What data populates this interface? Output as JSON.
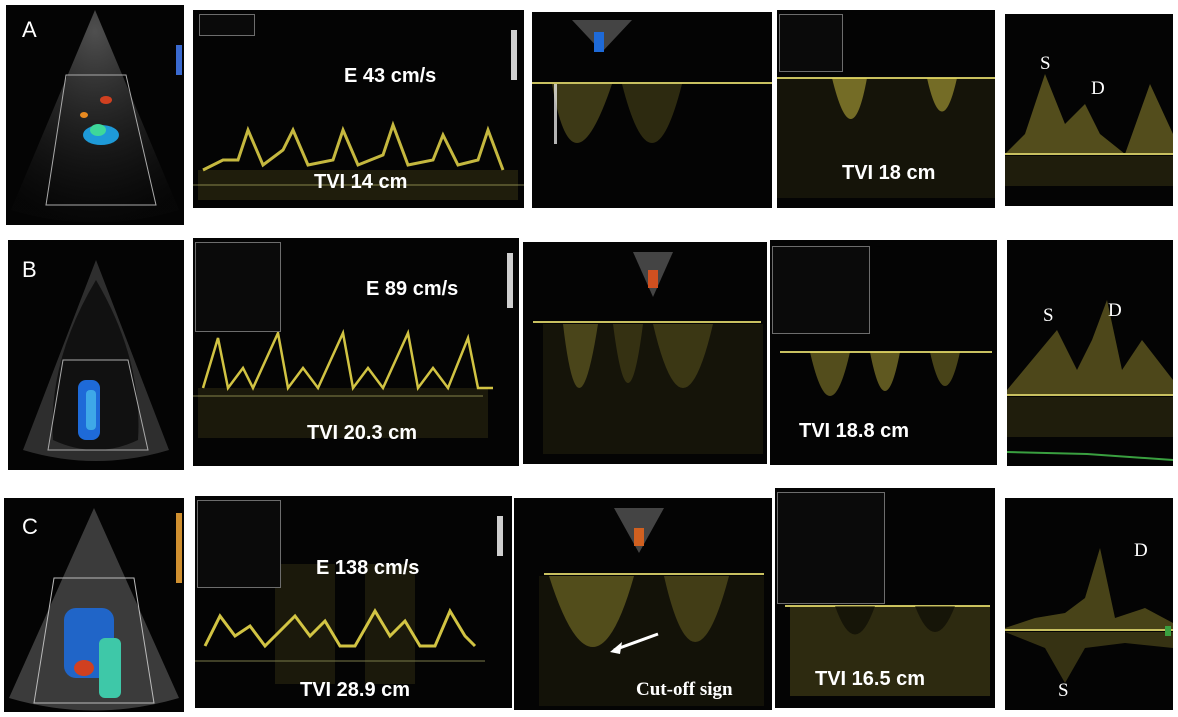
{
  "rows": [
    {
      "label": "A",
      "e_velocity": "E 43 cm/s",
      "tvi_lvot": "TVI 14 cm",
      "tvi_rvot": "TVI 18 cm",
      "vein_s": "S",
      "vein_d": "D"
    },
    {
      "label": "B",
      "e_velocity": "E 89 cm/s",
      "tvi_lvot": "TVI 20.3 cm",
      "tvi_rvot": "TVI 18.8 cm",
      "vein_s": "S",
      "vein_d": "D"
    },
    {
      "label": "C",
      "e_velocity": "E 138 cm/s",
      "tvi_lvot": "TVI 28.9 cm",
      "tvi_rvot": "TVI 16.5 cm",
      "vein_s": "S",
      "vein_d": "D",
      "cutoff": "Cut-off sign"
    }
  ],
  "colors": {
    "doppler": "#e8d84a",
    "background": "#040404",
    "text": "#ffffff"
  }
}
